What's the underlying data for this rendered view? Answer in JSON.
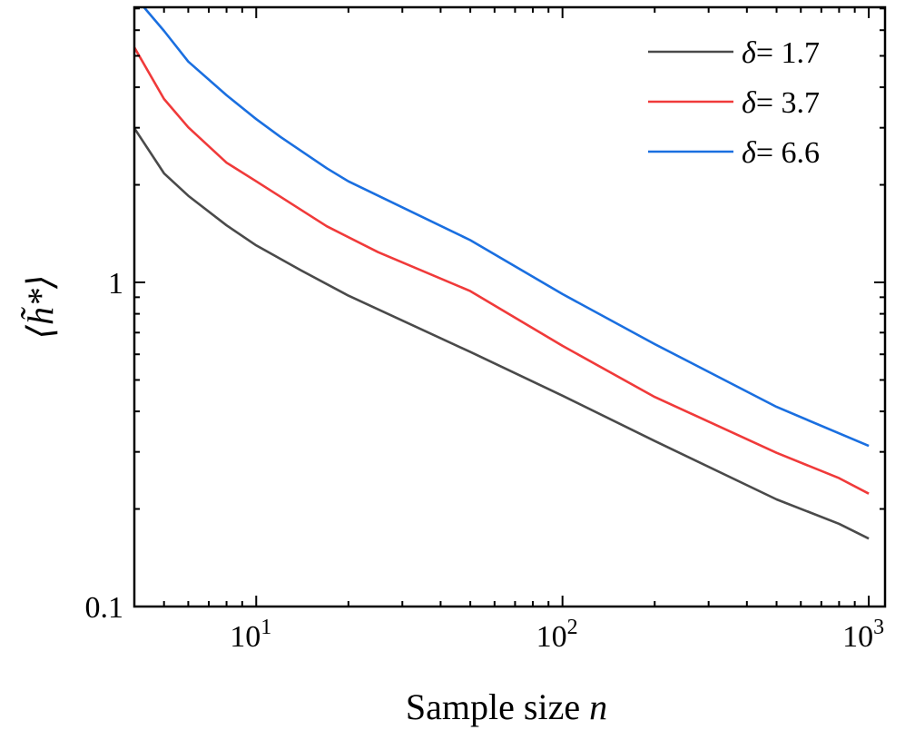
{
  "chart_data": {
    "type": "line",
    "title": "",
    "xlabel": "Sample size n",
    "xlabel_main": "Sample size ",
    "xlabel_var": "n",
    "ylabel": "⟨h̃*⟩",
    "xscale": "log",
    "yscale": "log",
    "xlim": [
      4,
      1130
    ],
    "ylim": [
      0.1,
      7.06
    ],
    "grid": false,
    "legend_position": "top-right",
    "x_ticks": [
      {
        "value": 10,
        "base": "10",
        "exp": "1"
      },
      {
        "value": 100,
        "base": "10",
        "exp": "2"
      },
      {
        "value": 1000,
        "base": "10",
        "exp": "3"
      }
    ],
    "y_ticks": [
      {
        "value": 0.1,
        "label": "0.1"
      },
      {
        "value": 1,
        "label": "1"
      }
    ],
    "series": [
      {
        "name": "δ = 1.7",
        "delta_symbol": "δ",
        "delta_value": "= 1.7",
        "color": "#4a4a4a",
        "x": [
          4,
          5,
          6,
          8,
          10,
          14,
          20,
          50,
          100,
          200,
          500,
          800,
          1000
        ],
        "y": [
          2.99,
          2.17,
          1.85,
          1.5,
          1.3,
          1.09,
          0.91,
          0.61,
          0.447,
          0.324,
          0.214,
          0.18,
          0.162
        ]
      },
      {
        "name": "δ = 3.7",
        "delta_symbol": "δ",
        "delta_value": "= 3.7",
        "color": "#f03a3a",
        "x": [
          4,
          5,
          6,
          8,
          10,
          17,
          25,
          50,
          100,
          200,
          500,
          800,
          1000
        ],
        "y": [
          5.31,
          3.68,
          3.01,
          2.34,
          2.05,
          1.49,
          1.24,
          0.94,
          0.637,
          0.443,
          0.298,
          0.249,
          0.223
        ]
      },
      {
        "name": "δ = 6.6",
        "delta_symbol": "δ",
        "delta_value": "= 6.6",
        "color": "#1a6fe0",
        "x": [
          4.3,
          5,
          6,
          8,
          10,
          12,
          17,
          20,
          50,
          100,
          200,
          500,
          1000
        ],
        "y": [
          7.06,
          5.97,
          4.8,
          3.78,
          3.19,
          2.81,
          2.25,
          2.05,
          1.35,
          0.92,
          0.645,
          0.413,
          0.313
        ]
      }
    ]
  }
}
